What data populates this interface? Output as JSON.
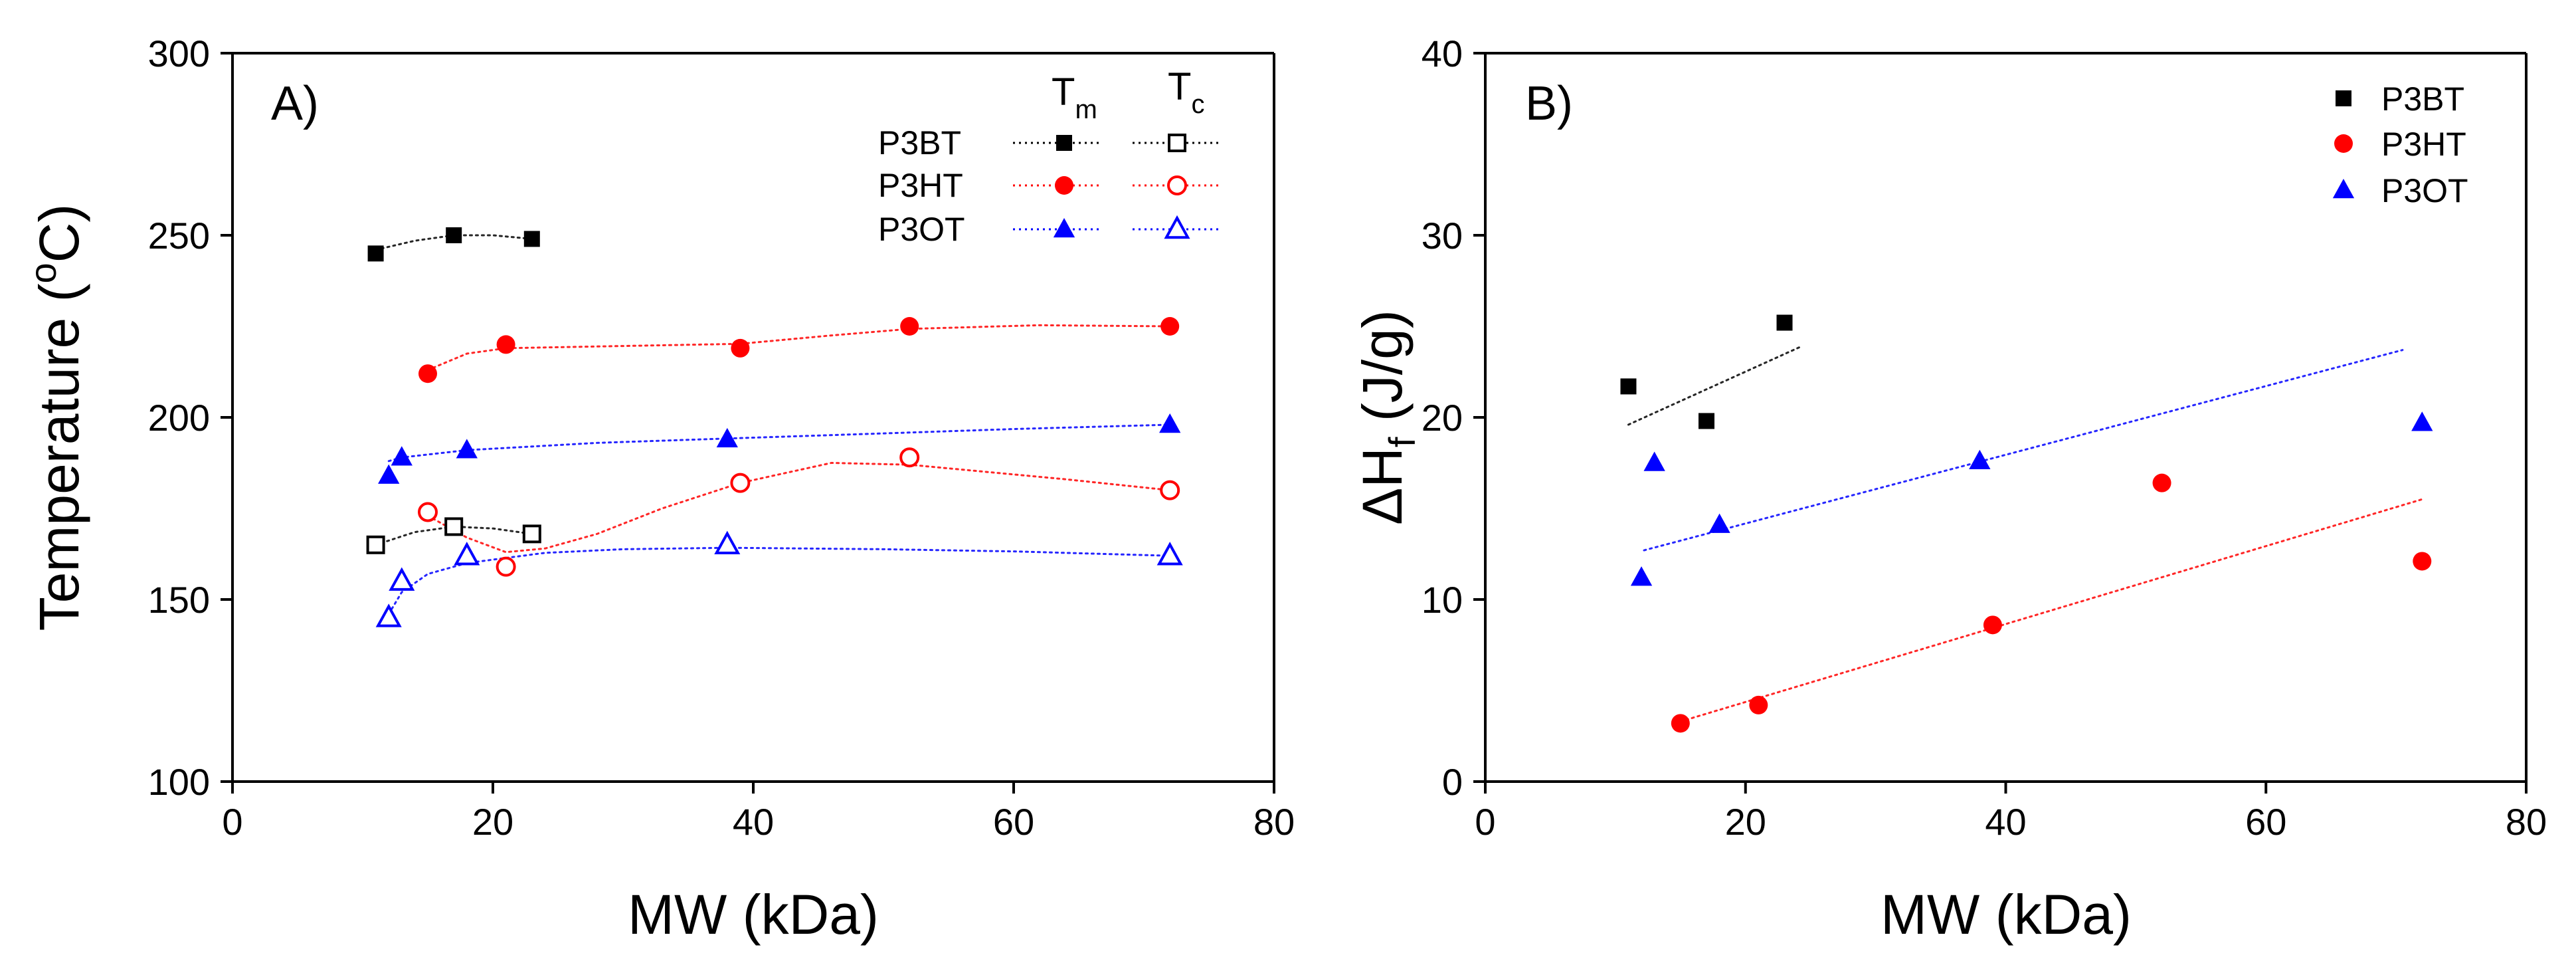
{
  "chart_data": [
    {
      "type": "scatter",
      "panel_label": "A)",
      "xlabel": "MW (kDa)",
      "ylabel": "Temperature (°C)",
      "ylabel_parts": [
        "Temperature (",
        "o",
        "C)"
      ],
      "xlim": [
        0,
        80
      ],
      "ylim": [
        100,
        300
      ],
      "xticks": [
        0,
        20,
        40,
        60,
        80
      ],
      "yticks": [
        100,
        150,
        200,
        250,
        300
      ],
      "legend": {
        "placement": "top-right",
        "col_headers": [
          {
            "main": "T",
            "sub": "m"
          },
          {
            "main": "T",
            "sub": "c"
          }
        ],
        "rows": [
          "P3BT",
          "P3HT",
          "P3OT"
        ]
      },
      "series": [
        {
          "name": "P3BT",
          "kind": "Tm",
          "color": "#000000",
          "marker": "square",
          "filled": true,
          "x": [
            11,
            17,
            23
          ],
          "y": [
            245,
            250,
            249
          ],
          "fit_x": [
            11,
            14,
            17,
            20,
            23
          ],
          "fit_y": [
            246,
            248.5,
            250,
            250,
            249
          ]
        },
        {
          "name": "P3HT",
          "kind": "Tm",
          "color": "#ff0000",
          "marker": "circle",
          "filled": true,
          "x": [
            15,
            21,
            39,
            52,
            72
          ],
          "y": [
            212,
            220,
            219,
            225,
            225
          ],
          "fit_x": [
            15,
            18,
            21,
            30,
            39,
            46,
            52,
            62,
            72
          ],
          "fit_y": [
            213,
            217.5,
            219,
            219.6,
            220.2,
            222.5,
            224.3,
            225.3,
            225
          ]
        },
        {
          "name": "P3OT",
          "kind": "Tm",
          "color": "#0000ff",
          "marker": "triangle",
          "filled": true,
          "x": [
            12,
            13,
            18,
            38,
            72
          ],
          "y": [
            184,
            189,
            191,
            194,
            198
          ],
          "fit_x": [
            12,
            13,
            18,
            28,
            38,
            50,
            60,
            72
          ],
          "fit_y": [
            188,
            189,
            191,
            193,
            194.2,
            195.6,
            196.8,
            198
          ]
        },
        {
          "name": "P3BT",
          "kind": "Tc",
          "color": "#000000",
          "marker": "square",
          "filled": false,
          "x": [
            11,
            17,
            23
          ],
          "y": [
            165,
            170,
            168
          ],
          "fit_x": [
            11,
            14,
            17,
            20,
            23
          ],
          "fit_y": [
            165,
            168.5,
            170,
            169.5,
            168
          ]
        },
        {
          "name": "P3HT",
          "kind": "Tc",
          "color": "#ff0000",
          "marker": "circle",
          "filled": false,
          "x": [
            15,
            21,
            39,
            52,
            72
          ],
          "y": [
            174,
            159,
            182,
            189,
            180
          ],
          "fit_x": [
            15,
            18,
            21,
            24,
            28,
            33,
            39,
            46,
            52,
            58,
            64,
            72
          ],
          "fit_y": [
            173,
            167,
            163,
            164,
            168,
            175,
            182,
            187.5,
            187,
            185,
            183,
            180
          ]
        },
        {
          "name": "P3OT",
          "kind": "Tc",
          "color": "#0000ff",
          "marker": "triangle",
          "filled": false,
          "x": [
            12,
            13,
            18,
            38,
            72
          ],
          "y": [
            145,
            155,
            162,
            165,
            162
          ],
          "fit_x": [
            12,
            13,
            15,
            18,
            24,
            30,
            38,
            50,
            60,
            72
          ],
          "fit_y": [
            146,
            152,
            157,
            160,
            162.8,
            163.8,
            164.2,
            163.8,
            163.2,
            162
          ]
        }
      ]
    },
    {
      "type": "scatter",
      "panel_label": "B)",
      "xlabel": "MW (kDa)",
      "ylabel": "ΔHf (J/g)",
      "ylabel_parts": [
        "ΔH",
        "f",
        " (J/g)"
      ],
      "xlim": [
        0,
        80
      ],
      "ylim": [
        0,
        40
      ],
      "xticks": [
        0,
        20,
        40,
        60,
        80
      ],
      "yticks": [
        0,
        10,
        20,
        30,
        40
      ],
      "legend": {
        "placement": "top-right",
        "rows": [
          "P3BT",
          "P3HT",
          "P3OT"
        ]
      },
      "series": [
        {
          "name": "P3BT",
          "color": "#000000",
          "marker": "square",
          "filled": true,
          "x": [
            11,
            17,
            23
          ],
          "y": [
            21.7,
            19.8,
            25.2
          ],
          "fit_x": [
            11,
            24.3
          ],
          "fit_y": [
            19.6,
            23.9
          ]
        },
        {
          "name": "P3HT",
          "color": "#ff0000",
          "marker": "circle",
          "filled": true,
          "x": [
            15,
            21,
            39,
            52,
            72
          ],
          "y": [
            3.2,
            4.2,
            8.6,
            16.4,
            12.1
          ],
          "fit_x": [
            15,
            72
          ],
          "fit_y": [
            3.3,
            15.5
          ]
        },
        {
          "name": "P3OT",
          "color": "#0000ff",
          "marker": "triangle",
          "filled": true,
          "x": [
            12,
            13,
            18,
            38,
            72
          ],
          "y": [
            11.2,
            17.5,
            14.1,
            17.6,
            19.7
          ],
          "fit_x": [
            12.2,
            70.5
          ],
          "fit_y": [
            12.7,
            23.7
          ]
        }
      ]
    }
  ]
}
